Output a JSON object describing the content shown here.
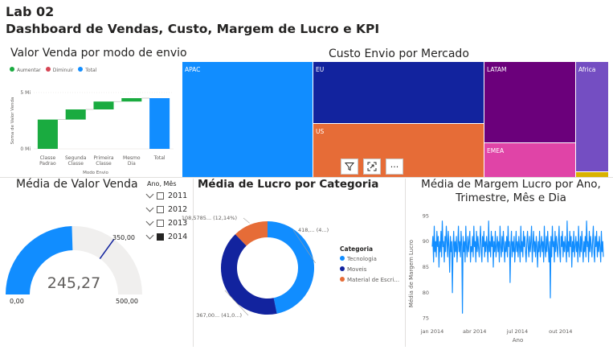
{
  "header": {
    "lab": "Lab 02",
    "title": "Dashboard de Vendas, Custo, Margem de Lucro e KPI"
  },
  "colors": {
    "increase": "#1aab40",
    "decrease": "#d64554",
    "total": "#118dff",
    "navy": "#12239e",
    "orange": "#e66c37",
    "purple": "#6b007b",
    "pink": "#e044a7",
    "violet": "#744ec2",
    "gold": "#d9b300"
  },
  "toolbar": {
    "filter_icon": "filter-icon",
    "focus_icon": "focus-mode-icon",
    "more_icon": "more-options-icon",
    "more_label": "···"
  },
  "slicer": {
    "title": "Ano, Mês",
    "items": [
      {
        "label": "2011",
        "checked": false
      },
      {
        "label": "2012",
        "checked": false
      },
      {
        "label": "2013",
        "checked": false
      },
      {
        "label": "2014",
        "checked": true
      }
    ]
  },
  "chart_data": [
    {
      "type": "waterfall",
      "title": "Valor Venda por modo de envio",
      "legend": [
        "Aumentar",
        "Diminuir",
        "Total"
      ],
      "legend_position": "top-left",
      "categories": [
        "Classe Padrao",
        "Segunda Classe",
        "Primeira Classe",
        "Mesmo Dia",
        "Total"
      ],
      "category_lines": [
        [
          "Classe",
          "Padrao"
        ],
        [
          "Segunda",
          "Classe"
        ],
        [
          "Primeira",
          "Classe"
        ],
        [
          "Mesmo",
          "Dia"
        ],
        [
          "Total"
        ]
      ],
      "values": [
        2.6,
        0.9,
        0.7,
        0.3,
        4.5
      ],
      "kinds": [
        "increase",
        "increase",
        "increase",
        "increase",
        "total"
      ],
      "xlabel": "Modo Envio",
      "ylabel": "Soma de Valor Venda",
      "yticks": [
        "0 Mi",
        "5 Mi"
      ],
      "ylim": [
        0,
        5
      ]
    },
    {
      "type": "treemap",
      "title": "Custo Envio por Mercado",
      "items": [
        {
          "label": "APAC",
          "color": "#118dff"
        },
        {
          "label": "EU",
          "color": "#12239e"
        },
        {
          "label": "US",
          "color": "#e66c37"
        },
        {
          "label": "LATAM",
          "color": "#6b007b"
        },
        {
          "label": "EMEA",
          "color": "#e044a7"
        },
        {
          "label": "Africa",
          "color": "#744ec2"
        },
        {
          "label": "",
          "color": "#d9b300"
        }
      ]
    },
    {
      "type": "gauge",
      "title": "Média de Valor Venda",
      "value": 245.27,
      "value_label": "245,27",
      "min_label": "0,00",
      "max_label": "500,00",
      "target_label": "350,00",
      "min": 0,
      "max": 500,
      "target": 350
    },
    {
      "type": "pie",
      "subtype": "donut",
      "title": "Média de Lucro por Categoria",
      "legend_title": "Categoria",
      "legend_position": "right",
      "series": [
        {
          "name": "Tecnologia",
          "value": 418,
          "label": "418,... (4...)",
          "color": "#118dff"
        },
        {
          "name": "Moveis",
          "value": 367,
          "label": "367,00... (41,0...)",
          "color": "#12239e"
        },
        {
          "name": "Material de Escri...",
          "value": 108.58,
          "label": "108,5785... (12,14%)",
          "color": "#e66c37"
        }
      ]
    },
    {
      "type": "line",
      "title": "Média de Margem Lucro por Ano, Trimestre, Mês e Dia",
      "title_lines": [
        "Média de Margem Lucro por Ano,",
        "Trimestre, Mês e Dia"
      ],
      "xlabel": "Ano",
      "ylabel": "Média de Margem Lucro",
      "x_ticks": [
        "jan 2014",
        "abr 2014",
        "jul 2014",
        "out 2014"
      ],
      "yticks": [
        75,
        80,
        85,
        90,
        95
      ],
      "ylim": [
        74,
        96
      ],
      "xlim": [
        "2014-01-01",
        "2014-12-31"
      ],
      "grid": false,
      "x_range": [
        "2014-01-01",
        "2014-12-31"
      ],
      "values": [
        89,
        91,
        86,
        93,
        88,
        90,
        87,
        92,
        89,
        91,
        85,
        90,
        88,
        92,
        87,
        94,
        89,
        90,
        86,
        91,
        88,
        93,
        90,
        87,
        92,
        89,
        84,
        91,
        88,
        90,
        80,
        89,
        92,
        87,
        90,
        88,
        91,
        86,
        89,
        93,
        88,
        90,
        87,
        92,
        89,
        76,
        91,
        88,
        90,
        86,
        93,
        89,
        87,
        91,
        88,
        90,
        92,
        86,
        89,
        88,
        91,
        87,
        93,
        89,
        90,
        86,
        92,
        88,
        91,
        89,
        87,
        90,
        93,
        88,
        86,
        91,
        89,
        92,
        87,
        90,
        88,
        91,
        89,
        86,
        94,
        88,
        90,
        87,
        92,
        89,
        91,
        85,
        90,
        88,
        92,
        87,
        89,
        91,
        88,
        90,
        86,
        93,
        89,
        87,
        91,
        88,
        92,
        89,
        86,
        90,
        88,
        91,
        87,
        93,
        89,
        90,
        82,
        89,
        92,
        87,
        90,
        88,
        91,
        86,
        89,
        92,
        88,
        90,
        87,
        91,
        89,
        86,
        93,
        88,
        90,
        87,
        92,
        89,
        91,
        88,
        86,
        90,
        92,
        89,
        87,
        91,
        88,
        90,
        93,
        86,
        89,
        92,
        88,
        90,
        87,
        91,
        89,
        85,
        90,
        88,
        92,
        87,
        89,
        91,
        88,
        90,
        86,
        93,
        89,
        87,
        91,
        88,
        92,
        89,
        86,
        90,
        79,
        91,
        87,
        93,
        89,
        90,
        86,
        92,
        88,
        91,
        89,
        87,
        90,
        93,
        88,
        86,
        91,
        89,
        92,
        87,
        90,
        88,
        91,
        89,
        86,
        94,
        88,
        90,
        87,
        92,
        89,
        91,
        85,
        90,
        88,
        92,
        87,
        89,
        91,
        88,
        90,
        86,
        93,
        89,
        87,
        91,
        88,
        92,
        89,
        86,
        90,
        88,
        91,
        87,
        94,
        89,
        90,
        86,
        92,
        88,
        91,
        89,
        87,
        90,
        93,
        88,
        86,
        91,
        89,
        92,
        87,
        90,
        88,
        91,
        89,
        86,
        92,
        88,
        90,
        87
      ]
    }
  ]
}
